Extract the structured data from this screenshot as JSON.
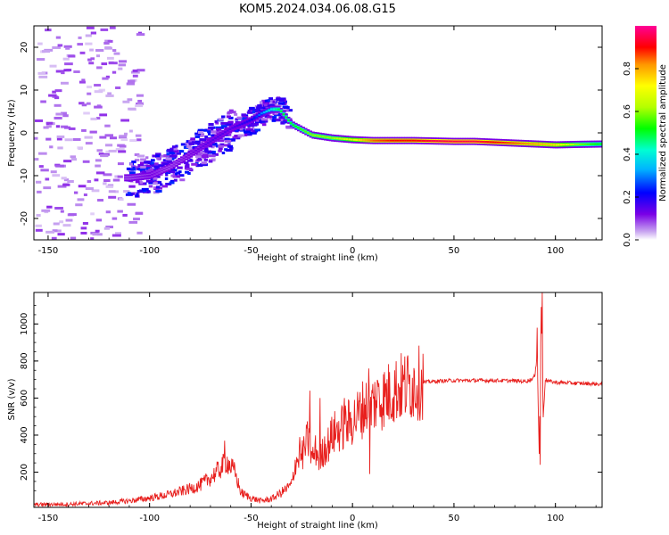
{
  "title": "KOM5.2024.034.06.08.G15",
  "chart_data": [
    {
      "type": "heatmap",
      "title": "KOM5.2024.034.06.08.G15",
      "xlabel": "Height of straight line (km)",
      "ylabel": "Frequency (Hz)",
      "xlim": [
        -157,
        123
      ],
      "ylim": [
        -25,
        25
      ],
      "x_ticks": [
        -150,
        -100,
        -50,
        0,
        50,
        100
      ],
      "x_tick_labels": [
        "-150",
        "-100",
        "-50",
        "0",
        "50",
        "100"
      ],
      "y_ticks": [
        -20,
        -10,
        0,
        10,
        20
      ],
      "y_tick_labels": [
        "-20",
        "-10",
        "0",
        "10",
        "20"
      ],
      "grid": false,
      "colorbar": {
        "label": "Normalized spectral amplitude",
        "range": [
          0,
          1
        ],
        "ticks": [
          0.0,
          0.2,
          0.4,
          0.6,
          0.8
        ],
        "tick_labels": [
          "0.0",
          "0.2",
          "0.4",
          "0.6",
          "0.8"
        ],
        "colormap": "rainbow (white/purple low → red/magenta high)"
      },
      "ridge": {
        "x": [
          -110,
          -100,
          -90,
          -80,
          -70,
          -60,
          -50,
          -45,
          -40,
          -36,
          -30,
          -20,
          -10,
          0,
          10,
          20,
          30,
          40,
          50,
          60,
          70,
          80,
          90,
          100,
          110,
          123
        ],
        "y": [
          -10.5,
          -10,
          -8,
          -5,
          -2,
          1,
          3,
          4.5,
          5.5,
          5.5,
          2,
          -0.5,
          -1.2,
          -1.6,
          -1.8,
          -1.8,
          -1.8,
          -1.9,
          -2,
          -2,
          -2.2,
          -2.4,
          -2.6,
          -2.8,
          -2.7,
          -2.6
        ],
        "amplitude": [
          0.1,
          0.12,
          0.1,
          0.12,
          0.15,
          0.15,
          0.2,
          0.3,
          0.4,
          0.5,
          0.5,
          0.6,
          0.6,
          0.7,
          0.85,
          0.9,
          0.9,
          0.95,
          0.95,
          0.95,
          0.9,
          0.85,
          0.8,
          0.75,
          0.6,
          0.5
        ]
      },
      "noise_region": {
        "x_range": [
          -157,
          -105
        ],
        "y_range": [
          -25,
          25
        ],
        "amplitude": 0.05
      }
    },
    {
      "type": "line",
      "xlabel": "Height of straight line (km)",
      "ylabel": "SNR (v/v)",
      "xlim": [
        -157,
        123
      ],
      "ylim": [
        10,
        1170
      ],
      "x_ticks": [
        -150,
        -100,
        -50,
        0,
        50,
        100
      ],
      "x_tick_labels": [
        "-150",
        "-100",
        "-50",
        "0",
        "50",
        "100"
      ],
      "y_ticks": [
        200,
        400,
        600,
        800,
        1000
      ],
      "y_tick_labels": [
        "200",
        "400",
        "600",
        "800",
        "1000"
      ],
      "grid": false,
      "line_color": "#e8201e",
      "series": [
        {
          "x": [
            -157,
            -140,
            -120,
            -110,
            -100,
            -90,
            -80,
            -75,
            -70,
            -65,
            -62,
            -58,
            -55,
            -50,
            -45,
            -40,
            -35,
            -30,
            -28,
            -25,
            -22,
            -20,
            -18,
            -16,
            -14,
            -12,
            -10,
            -8,
            -5,
            -2,
            0,
            3,
            6,
            8,
            10,
            12,
            15,
            18,
            20,
            25,
            30,
            35,
            40,
            50,
            60,
            70,
            80,
            85,
            88,
            90,
            91,
            92,
            93,
            94,
            95,
            97,
            100,
            110,
            123
          ],
          "y": [
            25,
            27,
            35,
            45,
            60,
            80,
            110,
            130,
            170,
            220,
            260,
            200,
            90,
            60,
            45,
            55,
            90,
            130,
            260,
            280,
            380,
            270,
            320,
            260,
            330,
            350,
            400,
            420,
            440,
            460,
            480,
            510,
            560,
            540,
            570,
            590,
            600,
            620,
            640,
            660,
            675,
            685,
            690,
            695,
            695,
            695,
            693,
            690,
            700,
            720,
            850,
            300,
            1100,
            500,
            700,
            690,
            685,
            680,
            675
          ]
        }
      ],
      "spikes": [
        {
          "x": -63,
          "y": 370
        },
        {
          "x": -26,
          "y": 390
        },
        {
          "x": -21,
          "y": 640
        },
        {
          "x": -16,
          "y": 600
        },
        {
          "x": -4,
          "y": 600
        },
        {
          "x": 8,
          "y": 760
        },
        {
          "x": 8.5,
          "y": 190
        },
        {
          "x": 13,
          "y": 680
        },
        {
          "x": 91,
          "y": 980
        },
        {
          "x": 92.5,
          "y": 240
        },
        {
          "x": 93.5,
          "y": 1170
        }
      ]
    }
  ]
}
